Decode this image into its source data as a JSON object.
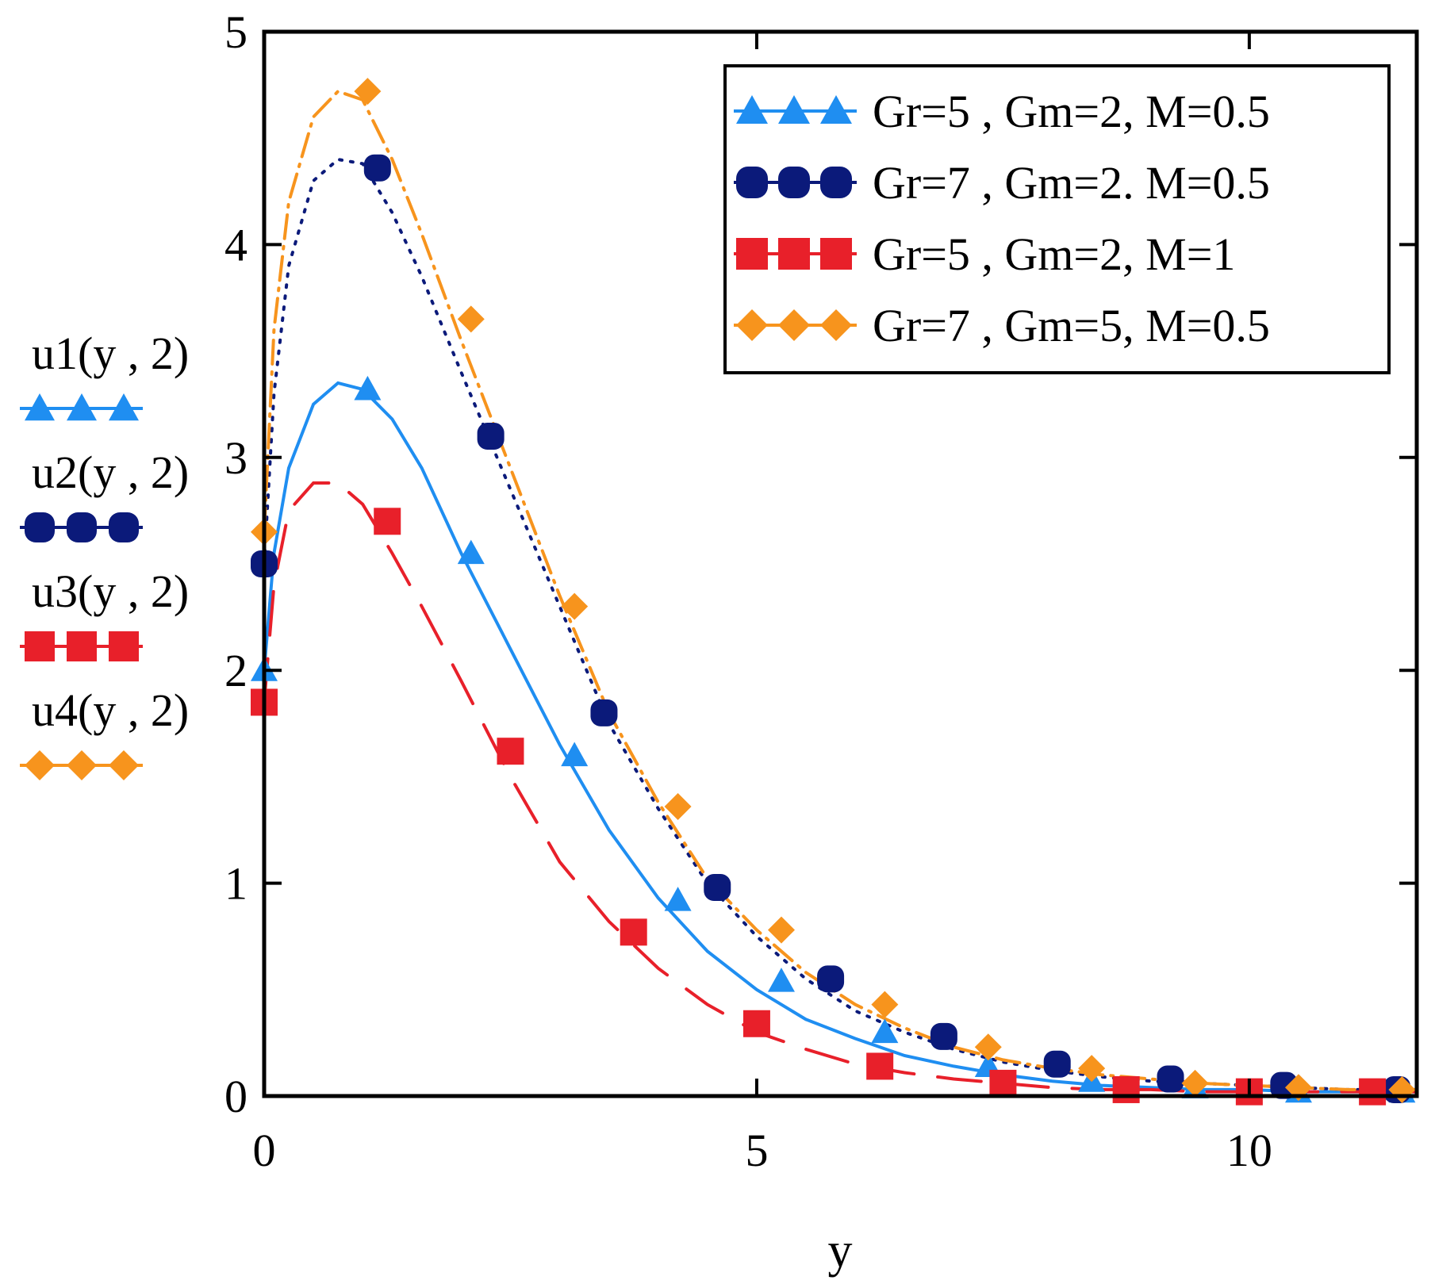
{
  "chart_data": {
    "type": "line",
    "title": "",
    "xlabel": "y",
    "ylabel_lines": [
      "u1(y , 2)",
      "u2(y , 2)",
      "u3(y , 2)",
      "u4(y , 2)"
    ],
    "xlim": [
      0,
      11.7
    ],
    "ylim": [
      0,
      5
    ],
    "xticks": [
      0,
      5,
      10
    ],
    "yticks": [
      0,
      1,
      2,
      3,
      4,
      5
    ],
    "grid": false,
    "legend_position": "top-right",
    "series": [
      {
        "key": "u1",
        "name": "Gr=5 , Gm=2, M=0.5",
        "axis_label": "u1(y , 2)",
        "color": "#1f8ef1",
        "marker": "triangle",
        "line": "solid",
        "x": [
          0,
          0.1,
          0.25,
          0.5,
          0.75,
          1.0,
          1.3,
          1.6,
          2.0,
          2.5,
          3.0,
          3.5,
          4.0,
          4.5,
          5.0,
          5.5,
          6.0,
          6.5,
          7.0,
          7.5,
          8.0,
          8.5,
          9.0,
          9.5,
          10.0,
          10.5,
          11.0,
          11.7
        ],
        "values": [
          2.0,
          2.55,
          2.95,
          3.25,
          3.35,
          3.32,
          3.18,
          2.95,
          2.55,
          2.1,
          1.65,
          1.25,
          0.93,
          0.68,
          0.5,
          0.36,
          0.27,
          0.19,
          0.14,
          0.1,
          0.07,
          0.05,
          0.04,
          0.03,
          0.03,
          0.02,
          0.02,
          0.02
        ],
        "markers_x": [
          0,
          1.05,
          2.1,
          3.15,
          4.2,
          5.25,
          6.3,
          7.35,
          8.4,
          9.45,
          10.5,
          11.55
        ],
        "markers_y": [
          2.0,
          3.32,
          2.55,
          1.6,
          0.92,
          0.54,
          0.3,
          0.14,
          0.07,
          0.04,
          0.02,
          0.02
        ]
      },
      {
        "key": "u2",
        "name": "Gr=7 , Gm=2. M=0.5",
        "axis_label": "u2(y , 2)",
        "color": "#0b1a7a",
        "marker": "circle",
        "line": "dotted",
        "x": [
          0,
          0.1,
          0.25,
          0.5,
          0.75,
          1.0,
          1.3,
          1.6,
          2.0,
          2.5,
          3.0,
          3.5,
          4.0,
          4.5,
          5.0,
          5.5,
          6.0,
          6.5,
          7.0,
          7.5,
          8.0,
          8.5,
          9.0,
          9.5,
          10.0,
          10.5,
          11.0,
          11.7
        ],
        "values": [
          2.5,
          3.3,
          3.9,
          4.3,
          4.4,
          4.38,
          4.15,
          3.85,
          3.4,
          2.85,
          2.3,
          1.75,
          1.35,
          1.0,
          0.75,
          0.55,
          0.4,
          0.3,
          0.22,
          0.16,
          0.12,
          0.09,
          0.07,
          0.06,
          0.05,
          0.04,
          0.03,
          0.03
        ],
        "markers_x": [
          0,
          1.15,
          2.3,
          3.45,
          4.6,
          5.75,
          6.9,
          8.05,
          9.2,
          10.35,
          11.5
        ],
        "markers_y": [
          2.5,
          4.36,
          3.1,
          1.8,
          0.98,
          0.55,
          0.28,
          0.15,
          0.08,
          0.05,
          0.03
        ]
      },
      {
        "key": "u3",
        "name": "Gr=5 , Gm=2, M=1",
        "axis_label": "u3(y , 2)",
        "color": "#e8202a",
        "marker": "square",
        "line": "dashed",
        "x": [
          0,
          0.1,
          0.25,
          0.5,
          0.75,
          1.0,
          1.3,
          1.6,
          2.0,
          2.5,
          3.0,
          3.5,
          4.0,
          4.5,
          5.0,
          5.5,
          6.0,
          6.5,
          7.0,
          7.5,
          8.0,
          8.5,
          9.0,
          9.5,
          10.0,
          10.5,
          11.0,
          11.7
        ],
        "values": [
          1.85,
          2.4,
          2.75,
          2.88,
          2.88,
          2.78,
          2.55,
          2.3,
          1.95,
          1.5,
          1.1,
          0.82,
          0.6,
          0.43,
          0.3,
          0.22,
          0.15,
          0.11,
          0.08,
          0.06,
          0.04,
          0.03,
          0.03,
          0.02,
          0.02,
          0.02,
          0.02,
          0.02
        ],
        "markers_x": [
          0,
          1.25,
          2.5,
          3.75,
          5.0,
          6.25,
          7.5,
          8.75,
          10.0,
          11.25
        ],
        "markers_y": [
          1.85,
          2.7,
          1.62,
          0.77,
          0.34,
          0.14,
          0.06,
          0.03,
          0.02,
          0.02
        ]
      },
      {
        "key": "u4",
        "name": "Gr=7 , Gm=5, M=0.5",
        "axis_label": "u4(y , 2)",
        "color": "#f7941d",
        "marker": "diamond",
        "line": "dashdot",
        "x": [
          0,
          0.1,
          0.25,
          0.5,
          0.75,
          1.0,
          1.3,
          1.6,
          2.0,
          2.5,
          3.0,
          3.5,
          4.0,
          4.5,
          5.0,
          5.5,
          6.0,
          6.5,
          7.0,
          7.5,
          8.0,
          8.5,
          9.0,
          9.5,
          10.0,
          10.5,
          11.0,
          11.7
        ],
        "values": [
          2.65,
          3.6,
          4.2,
          4.6,
          4.72,
          4.68,
          4.4,
          4.05,
          3.55,
          2.95,
          2.35,
          1.8,
          1.38,
          1.02,
          0.78,
          0.58,
          0.43,
          0.32,
          0.23,
          0.17,
          0.13,
          0.1,
          0.08,
          0.06,
          0.05,
          0.04,
          0.03,
          0.03
        ],
        "markers_x": [
          0,
          1.05,
          2.1,
          3.15,
          4.2,
          5.25,
          6.3,
          7.35,
          8.4,
          9.45,
          10.5,
          11.55
        ],
        "markers_y": [
          2.65,
          4.72,
          3.65,
          2.3,
          1.36,
          0.78,
          0.43,
          0.23,
          0.13,
          0.06,
          0.04,
          0.03
        ]
      }
    ]
  }
}
